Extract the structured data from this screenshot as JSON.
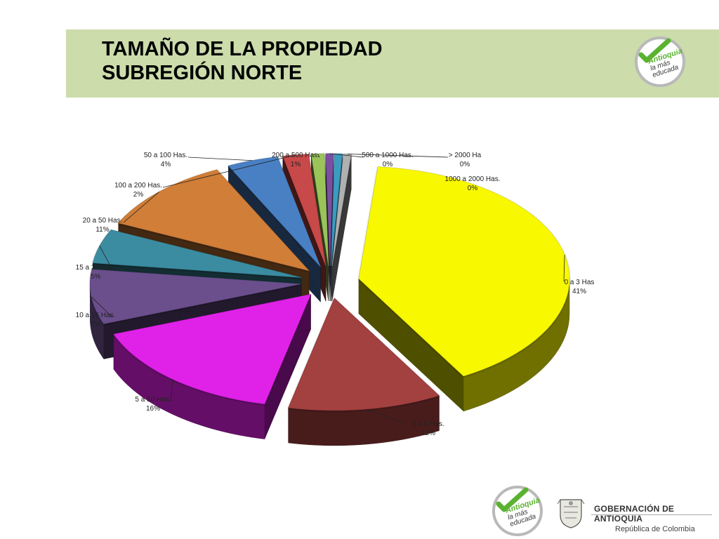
{
  "slide": {
    "title_line1": "TAMAÑO DE LA PROPIEDAD",
    "title_line2": "SUBREGIÓN NORTE"
  },
  "logos": {
    "brand_top": [
      "Antioquia",
      "la más",
      "educada"
    ],
    "brand_bottom": [
      "Antioquia",
      "la más",
      "educada"
    ],
    "gov_title": "GOBERNACIÓN DE ANTIOQUIA",
    "gov_subtitle": "República de Colombia"
  },
  "colors": {
    "header_band": "#ccdcab",
    "check_green": "#5bb231",
    "brand_text": "#3a3a3a"
  },
  "chart_data": {
    "type": "pie",
    "style": "3d-exploded",
    "categories": [
      "0 a 3 Has",
      "3 a 5 Has.",
      "5 a 10 Has.",
      "10 a 15 Has.",
      "15 a 20 Has.",
      "20 a 50 Has.",
      "50 a  100 Has.",
      "100 a 200 Has.",
      "200 a 500 Has.",
      "500 a 1000 Has.",
      "1000 a 2000 Has.",
      "> 2000 Ha"
    ],
    "values": [
      41,
      12,
      16,
      8,
      5,
      11,
      4,
      2,
      1,
      0,
      0,
      0
    ],
    "value_labels": [
      "41%",
      "12%",
      "16%",
      "8%",
      "5%",
      "11%",
      "4%",
      "2%",
      "1%",
      "0%",
      "0%",
      "0%"
    ],
    "colors": [
      "#f8f800",
      "#a33f3f",
      "#e020e8",
      "#6b4f8c",
      "#3b8ca0",
      "#d07e38",
      "#4a80c4",
      "#c84848",
      "#9ac45a",
      "#7a4fa0",
      "#3b9cc0",
      "#b0b0b0"
    ],
    "legend": "none"
  }
}
